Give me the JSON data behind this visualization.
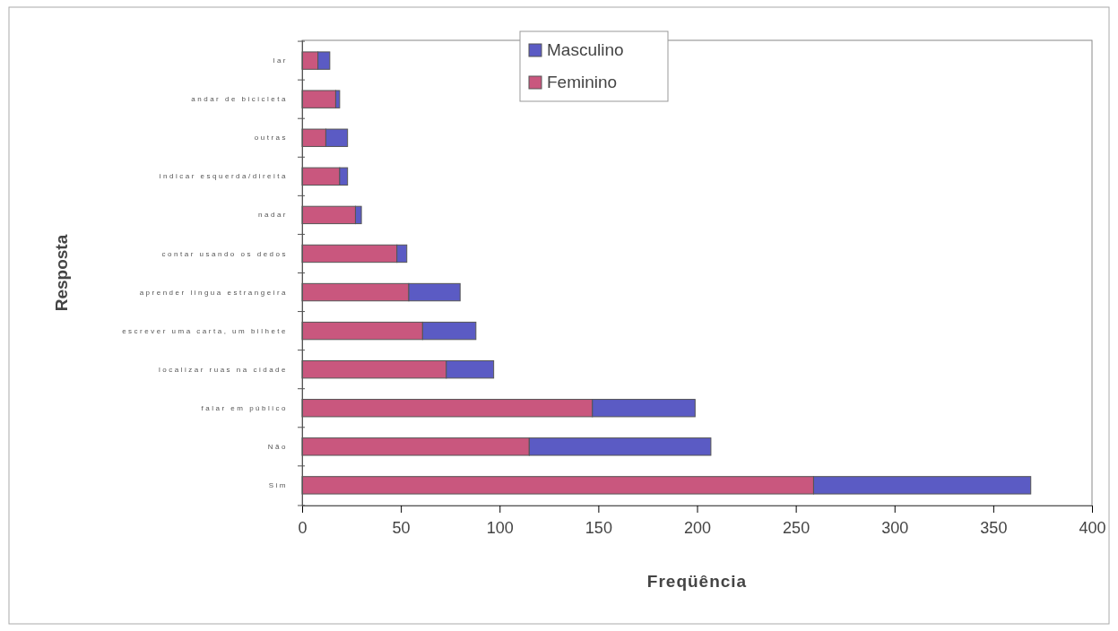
{
  "chart_data": {
    "type": "bar",
    "orientation": "horizontal",
    "stacked": true,
    "xlabel": "Freqüência",
    "ylabel": "Resposta",
    "categories": [
      "lar",
      "andar de bicicleta",
      "outras",
      "indicar esquerda/direita",
      "nadar",
      "contar usando os dedos",
      "aprender lingua estrangeira",
      "escrever uma carta, um bilhete",
      "localizar ruas na cidade",
      "falar em público",
      "Não",
      "Sim"
    ],
    "series": [
      {
        "name": "Feminino",
        "color": "#c9577e",
        "values": [
          8,
          17,
          12,
          19,
          27,
          48,
          54,
          61,
          73,
          147,
          115,
          259
        ]
      },
      {
        "name": "Masculino",
        "color": "#5b5bc4",
        "values": [
          6,
          2,
          11,
          4,
          3,
          5,
          26,
          27,
          24,
          52,
          92,
          110
        ]
      }
    ],
    "xlim": [
      0,
      400
    ],
    "xticks": [
      0,
      50,
      100,
      150,
      200,
      250,
      300,
      350,
      400
    ],
    "grid": false,
    "legend": "top"
  }
}
